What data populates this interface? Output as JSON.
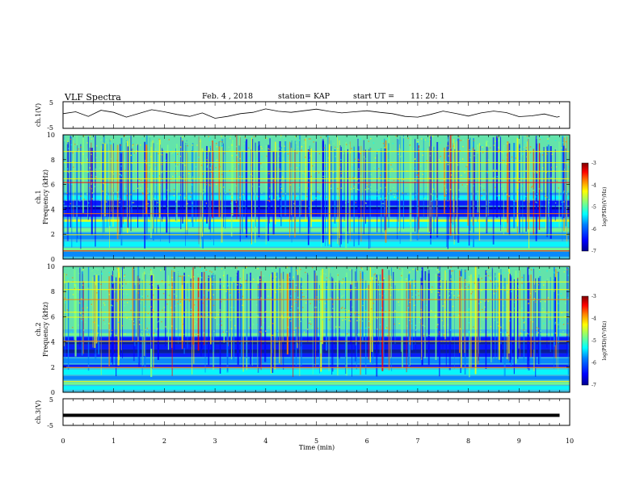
{
  "header": {
    "title": "VLF Spectra",
    "date": "Feb. 4 , 2018",
    "station": "station= KAP",
    "start_ut": "start UT =",
    "start_time": "11: 20: 1"
  },
  "chart_data": [
    {
      "type": "line",
      "title": "",
      "ylabel": "ch.1(V)",
      "xlabel": "",
      "xlim": [
        0,
        10
      ],
      "ylim": [
        -5,
        5
      ],
      "y_ticks": [
        "5",
        "-5"
      ],
      "series": [
        {
          "values_description_note": "",
          "x": [
            0,
            0.25,
            0.5,
            0.75,
            1,
            1.25,
            1.5,
            1.75,
            2,
            2.25,
            2.5,
            2.75,
            3,
            3.25,
            3.5,
            3.75,
            4,
            4.25,
            4.5,
            4.75,
            5,
            5.25,
            5.5,
            5.75,
            6,
            6.25,
            6.5,
            6.75,
            7,
            7.25,
            7.5,
            7.75,
            8,
            8.25,
            8.5,
            8.75,
            9,
            9.25,
            9.5,
            9.75,
            9.8
          ],
          "y": [
            0.5,
            1.2,
            -0.5,
            1.8,
            1.0,
            -0.8,
            0.6,
            2.0,
            1.2,
            0.2,
            -0.5,
            0.8,
            -1.2,
            -0.5,
            0.5,
            1.0,
            2.3,
            1.4,
            1.0,
            1.6,
            2.2,
            1.4,
            0.8,
            1.2,
            1.6,
            1.0,
            0.5,
            -0.5,
            -0.8,
            0.2,
            1.5,
            0.6,
            -0.4,
            0.8,
            1.5,
            0.9,
            -0.6,
            -0.3,
            0.4,
            -0.8,
            -0.5
          ]
        }
      ]
    },
    {
      "type": "heatmap",
      "title": "",
      "ylabel_line1": "ch.1",
      "ylabel_line2": "Frequency (kHz)",
      "xlim": [
        0,
        10
      ],
      "ylim": [
        0,
        10
      ],
      "y_ticks": [
        "0",
        "2",
        "4",
        "6",
        "8",
        "10"
      ],
      "colorbar": {
        "label": "log(PSD)(V²/Hz)",
        "range": [
          -7,
          -3
        ],
        "ticks": [
          "-3",
          "-4",
          "-5",
          "-6",
          "-7"
        ]
      }
    },
    {
      "type": "heatmap",
      "title": "",
      "ylabel_line1": "ch.2",
      "ylabel_line2": "Frequency (kHz)",
      "xlim": [
        0,
        10
      ],
      "ylim": [
        0,
        10
      ],
      "y_ticks": [
        "0",
        "2",
        "4",
        "6",
        "8",
        "10"
      ],
      "colorbar": {
        "label": "log(PSD)(V²/Hz)",
        "range": [
          -7,
          -3
        ],
        "ticks": [
          "-3",
          "-4",
          "-5",
          "-6",
          "-7"
        ]
      }
    },
    {
      "type": "line",
      "title": "",
      "ylabel": "ch.3(V)",
      "xlabel": "Time (min)",
      "xlim": [
        0,
        10
      ],
      "ylim": [
        -5,
        5
      ],
      "y_ticks": [
        "5",
        "-5"
      ],
      "x_ticks": [
        "0",
        "1",
        "2",
        "3",
        "4",
        "5",
        "6",
        "7",
        "8",
        "9",
        "10"
      ],
      "series": [
        {
          "x": [
            0,
            9.8
          ],
          "y": [
            -1.2,
            -1.2
          ]
        }
      ]
    }
  ],
  "colors": {
    "jet": [
      "#00008f",
      "#0000ff",
      "#0080ff",
      "#00ffff",
      "#80ff80",
      "#ffff00",
      "#ff8000",
      "#ff0000",
      "#800000"
    ]
  }
}
